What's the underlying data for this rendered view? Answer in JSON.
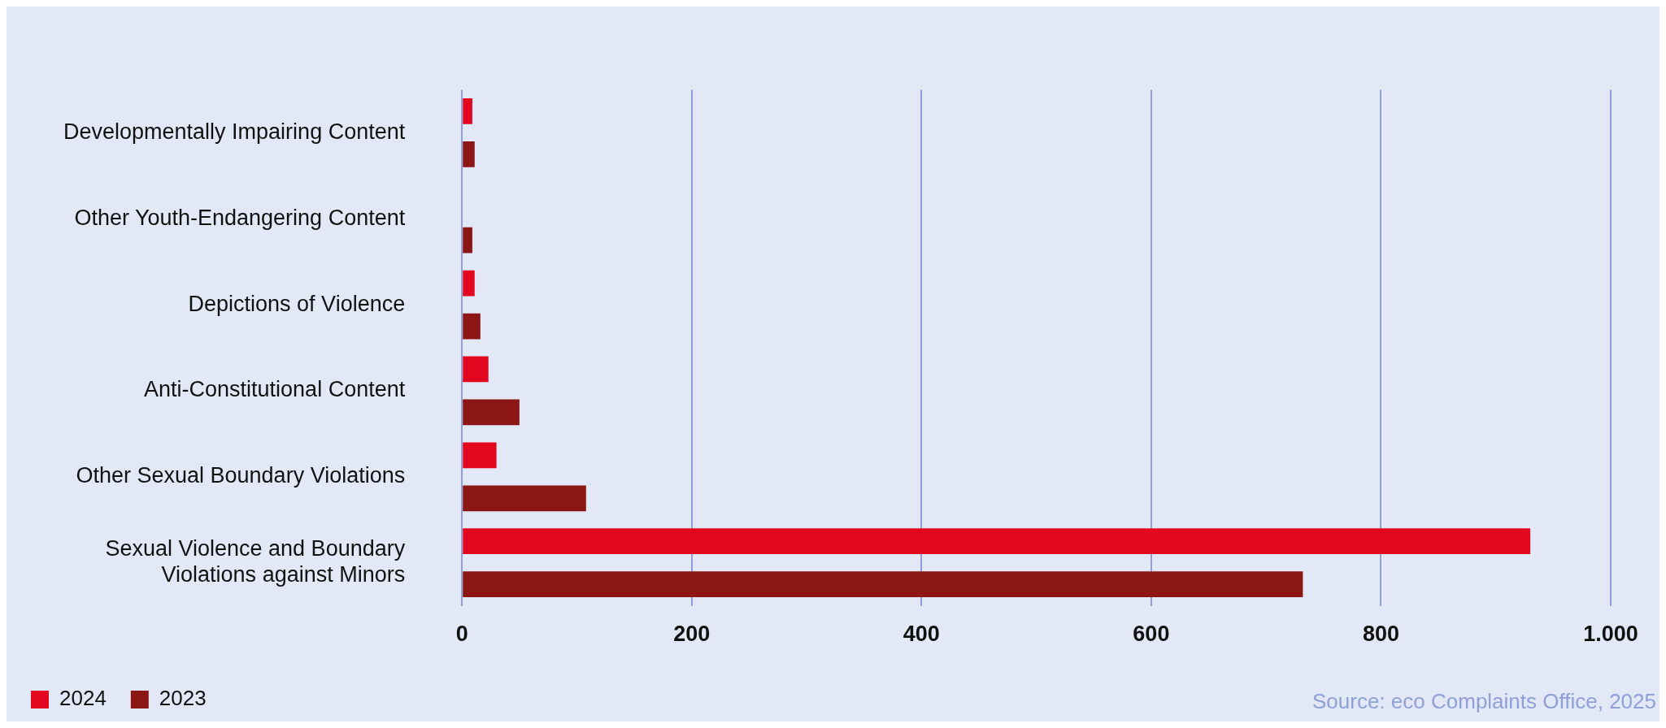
{
  "chart_data": {
    "type": "bar",
    "orientation": "horizontal",
    "categories": [
      "Developmentally Impairing Content",
      "Other Youth-Endangering Content",
      "Depictions of Violence",
      "Anti-Constitutional Content",
      "Other Sexual Boundary Violations",
      "Sexual Violence and Boundary Violations against Minors"
    ],
    "series": [
      {
        "name": "2024",
        "color": "#e3061f",
        "values": [
          9,
          0,
          11,
          23,
          30,
          930
        ]
      },
      {
        "name": "2023",
        "color": "#8b1614",
        "values": [
          11,
          9,
          16,
          50,
          108,
          732
        ]
      }
    ],
    "xlim": [
      0,
      1000
    ],
    "xticks": [
      0,
      200,
      400,
      600,
      800,
      {
        "value": 1000,
        "label": "1.000"
      }
    ],
    "grid": "x",
    "legend": "bottom left",
    "annotations": [
      "Source: eco Complaints Office, 2025"
    ]
  }
}
